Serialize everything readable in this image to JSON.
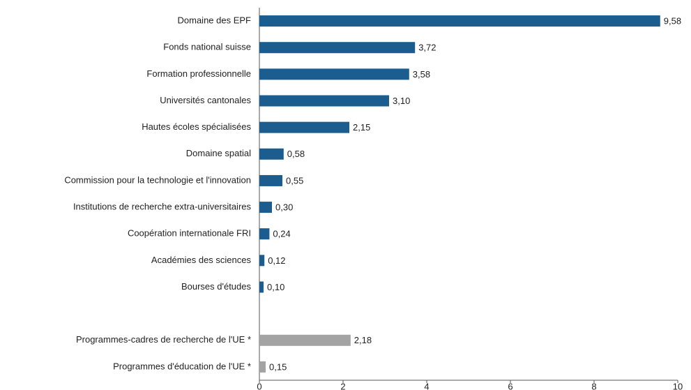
{
  "chart_data": {
    "type": "hbar",
    "categories": [
      "Domaine des EPF",
      "Fonds national suisse",
      "Formation professionnelle",
      "Universités cantonales",
      "Hautes écoles spécialisées",
      "Domaine spatial",
      "Commission pour la technologie et l'innovation",
      "Institutions de recherche extra-universitaires",
      "Coopération internationale FRI",
      "Académies des sciences",
      "Bourses d'études",
      null,
      "Programmes-cadres de recherche de l'UE *",
      "Programmes d'éducation de l'UE *"
    ],
    "values": [
      9.58,
      3.72,
      3.58,
      3.1,
      2.15,
      0.58,
      0.55,
      0.3,
      0.24,
      0.12,
      0.1,
      null,
      2.18,
      0.15
    ],
    "value_labels": [
      "9,58",
      "3,72",
      "3,58",
      "3,10",
      "2,15",
      "0,58",
      "0,55",
      "0,30",
      "0,24",
      "0,12",
      "0,10",
      null,
      "2,18",
      "0,15"
    ],
    "colors": [
      "#1b5d8f",
      "#1b5d8f",
      "#1b5d8f",
      "#1b5d8f",
      "#1b5d8f",
      "#1b5d8f",
      "#1b5d8f",
      "#1b5d8f",
      "#1b5d8f",
      "#1b5d8f",
      "#1b5d8f",
      null,
      "#a3a3a3",
      "#a3a3a3"
    ],
    "xlim": [
      0,
      10
    ],
    "xticks": [
      0,
      2,
      4,
      6,
      8,
      10
    ],
    "grid": false
  }
}
